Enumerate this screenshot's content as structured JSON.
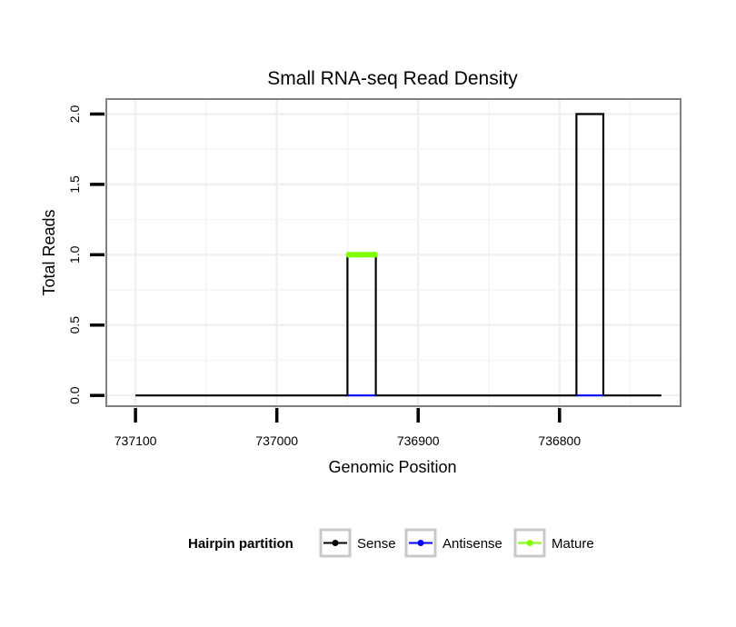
{
  "chart_data": {
    "type": "line",
    "title": "Small RNA-seq Read Density",
    "xlabel": "Genomic Position",
    "ylabel": "Total Reads",
    "xlim": [
      737120,
      736715
    ],
    "x_reversed": true,
    "ylim": [
      -0.07,
      2.1
    ],
    "xticks": [
      737100,
      737000,
      736900,
      736800
    ],
    "xtick_labels": [
      "737100",
      "737000",
      "736900",
      "736800"
    ],
    "yticks": [
      0.0,
      0.5,
      1.0,
      1.5,
      2.0
    ],
    "ytick_labels": [
      "0.0",
      "0.5",
      "1.0",
      "1.5",
      "2.0"
    ],
    "grid": true,
    "legend_position": "bottom",
    "legend_title": "Hairpin partition",
    "series": [
      {
        "name": "Sense",
        "color": "#000000",
        "x": [
          737100,
          736950,
          736950,
          736930,
          736930,
          736788,
          736788,
          736769,
          736769,
          736728
        ],
        "y": [
          0,
          0,
          1,
          1,
          0,
          0,
          2,
          2,
          0,
          0
        ]
      },
      {
        "name": "Antisense",
        "color": "#0000ff",
        "x": [
          736950,
          736930
        ],
        "y": [
          0,
          0
        ],
        "x2": [
          736788,
          736769
        ],
        "y2": [
          0,
          0
        ]
      },
      {
        "name": "Mature",
        "color": "#7fff00",
        "x": [
          736949,
          736931
        ],
        "y": [
          1,
          1
        ]
      }
    ]
  }
}
